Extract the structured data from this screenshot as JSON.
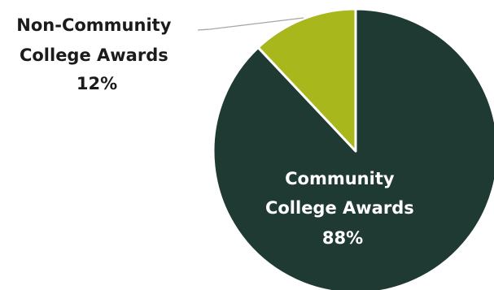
{
  "chart_data": {
    "type": "pie",
    "title": "",
    "slices": [
      {
        "label_lines": [
          "Community",
          "College Awards"
        ],
        "value": 88,
        "value_label": "88%",
        "color": "#1e3a33"
      },
      {
        "label_lines": [
          "Non-Community",
          "College Awards"
        ],
        "value": 12,
        "value_label": "12%",
        "color": "#a8b71c"
      }
    ],
    "legend": "none",
    "leader_line_color": "#a6a6a6"
  }
}
